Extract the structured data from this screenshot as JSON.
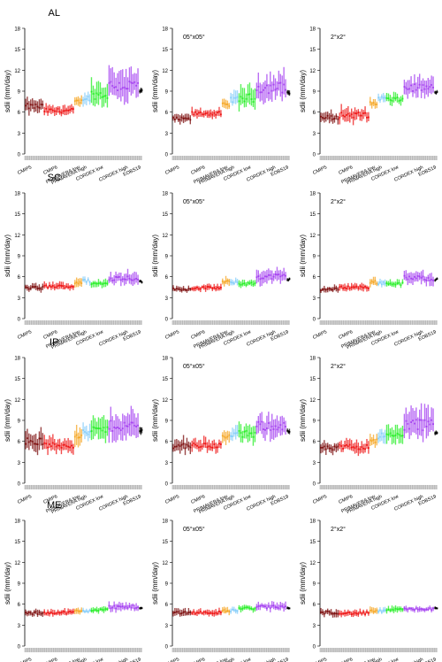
{
  "figure": {
    "colors": {
      "CMIP5": "#7a0a0a",
      "CMIP6": "#ee1111",
      "PRIMAVERA low": "#f5a623",
      "PRIMAVERA high": "#87cefa",
      "CORDEX low": "#22ee22",
      "CORDEX high": "#a33ef0",
      "EOBS19": "#000000",
      "axis": "#000000",
      "tick_strip": "#9a9a9a"
    }
  },
  "chart_data": [
    {
      "panel": "AL-native",
      "type": "scatter",
      "title": "AL",
      "subtitle": "",
      "ylabel": "sdii (mm/day)",
      "ylim": [
        0,
        18
      ],
      "yticks": [
        0,
        3,
        6,
        9,
        12,
        15,
        18
      ],
      "xtick_labels": [
        "CMIP5",
        "CMIP6",
        "PRIMAVERA low",
        "PRIMAVERA high",
        "CORDEX low",
        "CORDEX high",
        "EOBS19"
      ],
      "series": [
        {
          "name": "CMIP5",
          "median": 6.8,
          "spread": 1.6
        },
        {
          "name": "CMIP6",
          "median": 6.2,
          "spread": 1.2
        },
        {
          "name": "PRIMAVERA low",
          "median": 7.5,
          "spread": 1.1
        },
        {
          "name": "PRIMAVERA high",
          "median": 8.0,
          "spread": 1.4
        },
        {
          "name": "CORDEX low",
          "median": 8.5,
          "spread": 2.6
        },
        {
          "name": "CORDEX high",
          "median": 9.8,
          "spread": 3.6
        },
        {
          "name": "EOBS19",
          "median": 9.0,
          "spread": 0.6
        }
      ]
    },
    {
      "panel": "AL-05x05",
      "type": "scatter",
      "title": "",
      "subtitle": "05°x05°",
      "ylabel": "sdii (mm/day)",
      "ylim": [
        0,
        18
      ],
      "yticks": [
        0,
        3,
        6,
        9,
        12,
        15,
        18
      ],
      "xtick_labels": [
        "CMIP5",
        "CMIP6",
        "PRIMAVERA low",
        "PRIMAVERA high",
        "CORDEX low",
        "CORDEX high",
        "EOBS19"
      ],
      "series": [
        {
          "name": "CMIP5",
          "median": 5.0,
          "spread": 1.0
        },
        {
          "name": "CMIP6",
          "median": 5.8,
          "spread": 1.0
        },
        {
          "name": "PRIMAVERA low",
          "median": 7.0,
          "spread": 1.2
        },
        {
          "name": "PRIMAVERA high",
          "median": 7.8,
          "spread": 1.5
        },
        {
          "name": "CORDEX low",
          "median": 8.0,
          "spread": 2.4
        },
        {
          "name": "CORDEX high",
          "median": 9.5,
          "spread": 3.2
        },
        {
          "name": "EOBS19",
          "median": 8.8,
          "spread": 0.6
        }
      ]
    },
    {
      "panel": "AL-2x2",
      "type": "scatter",
      "title": "",
      "subtitle": "2°x2°",
      "ylabel": "sdii (mm/day)",
      "ylim": [
        0,
        18
      ],
      "yticks": [
        0,
        3,
        6,
        9,
        12,
        15,
        18
      ],
      "xtick_labels": [
        "CMIP5",
        "CMIP6",
        "PRIMAVERA low",
        "PRIMAVERA high",
        "CORDEX low",
        "CORDEX high",
        "EOBS19"
      ],
      "series": [
        {
          "name": "CMIP5",
          "median": 5.2,
          "spread": 1.2
        },
        {
          "name": "CMIP6",
          "median": 5.6,
          "spread": 1.6
        },
        {
          "name": "PRIMAVERA low",
          "median": 7.2,
          "spread": 1.0
        },
        {
          "name": "PRIMAVERA high",
          "median": 8.0,
          "spread": 1.0
        },
        {
          "name": "CORDEX low",
          "median": 7.8,
          "spread": 1.2
        },
        {
          "name": "CORDEX high",
          "median": 9.5,
          "spread": 2.0
        },
        {
          "name": "EOBS19",
          "median": 8.8,
          "spread": 0.4
        }
      ]
    },
    {
      "panel": "SC-native",
      "type": "scatter",
      "title": "SC",
      "subtitle": "",
      "ylabel": "sdii (mm/day)",
      "ylim": [
        0,
        18
      ],
      "yticks": [
        0,
        3,
        6,
        9,
        12,
        15,
        18
      ],
      "xtick_labels": [
        "CMIP5",
        "CMIP6",
        "PRIMAVERA low",
        "PRIMAVERA high",
        "CORDEX low",
        "CORDEX high",
        "EOBS19"
      ],
      "series": [
        {
          "name": "CMIP5",
          "median": 4.4,
          "spread": 0.8
        },
        {
          "name": "CMIP6",
          "median": 4.6,
          "spread": 0.8
        },
        {
          "name": "PRIMAVERA low",
          "median": 5.2,
          "spread": 1.2
        },
        {
          "name": "PRIMAVERA high",
          "median": 5.4,
          "spread": 0.8
        },
        {
          "name": "CORDEX low",
          "median": 5.0,
          "spread": 0.9
        },
        {
          "name": "CORDEX high",
          "median": 5.8,
          "spread": 1.4
        },
        {
          "name": "EOBS19",
          "median": 5.3,
          "spread": 0.4
        }
      ]
    },
    {
      "panel": "SC-05x05",
      "type": "scatter",
      "title": "",
      "subtitle": "05°x05°",
      "ylabel": "sdii (mm/day)",
      "ylim": [
        0,
        18
      ],
      "yticks": [
        0,
        3,
        6,
        9,
        12,
        15,
        18
      ],
      "xtick_labels": [
        "CMIP5",
        "CMIP6",
        "PRIMAVERA low",
        "PRIMAVERA high",
        "CORDEX low",
        "CORDEX high",
        "EOBS19"
      ],
      "series": [
        {
          "name": "CMIP5",
          "median": 4.2,
          "spread": 0.6
        },
        {
          "name": "CMIP6",
          "median": 4.4,
          "spread": 0.7
        },
        {
          "name": "PRIMAVERA low",
          "median": 5.2,
          "spread": 1.0
        },
        {
          "name": "PRIMAVERA high",
          "median": 5.2,
          "spread": 0.8
        },
        {
          "name": "CORDEX low",
          "median": 5.0,
          "spread": 0.8
        },
        {
          "name": "CORDEX high",
          "median": 6.0,
          "spread": 1.6
        },
        {
          "name": "EOBS19",
          "median": 5.6,
          "spread": 0.4
        }
      ]
    },
    {
      "panel": "SC-2x2",
      "type": "scatter",
      "title": "",
      "subtitle": "2°x2°",
      "ylabel": "sdii (mm/day)",
      "ylim": [
        0,
        18
      ],
      "yticks": [
        0,
        3,
        6,
        9,
        12,
        15,
        18
      ],
      "xtick_labels": [
        "CMIP5",
        "CMIP6",
        "PRIMAVERA low",
        "PRIMAVERA high",
        "CORDEX low",
        "CORDEX high",
        "EOBS19"
      ],
      "series": [
        {
          "name": "CMIP5",
          "median": 4.2,
          "spread": 0.7
        },
        {
          "name": "CMIP6",
          "median": 4.5,
          "spread": 0.8
        },
        {
          "name": "PRIMAVERA low",
          "median": 5.2,
          "spread": 1.0
        },
        {
          "name": "PRIMAVERA high",
          "median": 5.1,
          "spread": 0.8
        },
        {
          "name": "CORDEX low",
          "median": 5.0,
          "spread": 0.8
        },
        {
          "name": "CORDEX high",
          "median": 5.8,
          "spread": 1.4
        },
        {
          "name": "EOBS19",
          "median": 5.6,
          "spread": 0.4
        }
      ]
    },
    {
      "panel": "IP-native",
      "type": "scatter",
      "title": "IP",
      "subtitle": "",
      "ylabel": "sdii (mm/day)",
      "ylim": [
        0,
        18
      ],
      "yticks": [
        0,
        3,
        6,
        9,
        12,
        15,
        18
      ],
      "xtick_labels": [
        "CMIP5",
        "CMIP6",
        "PRIMAVERA low",
        "PRIMAVERA high",
        "CORDEX low",
        "CORDEX high",
        "EOBS19"
      ],
      "series": [
        {
          "name": "CMIP5",
          "median": 6.0,
          "spread": 2.4
        },
        {
          "name": "CMIP6",
          "median": 5.4,
          "spread": 1.6
        },
        {
          "name": "PRIMAVERA low",
          "median": 7.0,
          "spread": 2.2
        },
        {
          "name": "PRIMAVERA high",
          "median": 7.2,
          "spread": 1.6
        },
        {
          "name": "CORDEX low",
          "median": 7.6,
          "spread": 2.6
        },
        {
          "name": "CORDEX high",
          "median": 8.2,
          "spread": 3.0
        },
        {
          "name": "EOBS19",
          "median": 7.5,
          "spread": 0.8
        }
      ]
    },
    {
      "panel": "IP-05x05",
      "type": "scatter",
      "title": "",
      "subtitle": "05°x05°",
      "ylabel": "sdii (mm/day)",
      "ylim": [
        0,
        18
      ],
      "yticks": [
        0,
        3,
        6,
        9,
        12,
        15,
        18
      ],
      "xtick_labels": [
        "CMIP5",
        "CMIP6",
        "PRIMAVERA low",
        "PRIMAVERA high",
        "CORDEX low",
        "CORDEX high",
        "EOBS19"
      ],
      "series": [
        {
          "name": "CMIP5",
          "median": 5.4,
          "spread": 1.6
        },
        {
          "name": "CMIP6",
          "median": 5.4,
          "spread": 1.4
        },
        {
          "name": "PRIMAVERA low",
          "median": 6.6,
          "spread": 1.6
        },
        {
          "name": "PRIMAVERA high",
          "median": 7.0,
          "spread": 1.6
        },
        {
          "name": "CORDEX low",
          "median": 7.0,
          "spread": 2.0
        },
        {
          "name": "CORDEX high",
          "median": 8.2,
          "spread": 2.6
        },
        {
          "name": "EOBS19",
          "median": 7.4,
          "spread": 0.6
        }
      ]
    },
    {
      "panel": "IP-2x2",
      "type": "scatter",
      "title": "",
      "subtitle": "2°x2°",
      "ylabel": "sdii (mm/day)",
      "ylim": [
        0,
        18
      ],
      "yticks": [
        0,
        3,
        6,
        9,
        12,
        15,
        18
      ],
      "xtick_labels": [
        "CMIP5",
        "CMIP6",
        "PRIMAVERA low",
        "PRIMAVERA high",
        "CORDEX low",
        "CORDEX high",
        "EOBS19"
      ],
      "series": [
        {
          "name": "CMIP5",
          "median": 5.0,
          "spread": 1.2
        },
        {
          "name": "CMIP6",
          "median": 5.2,
          "spread": 1.4
        },
        {
          "name": "PRIMAVERA low",
          "median": 6.2,
          "spread": 1.6
        },
        {
          "name": "PRIMAVERA high",
          "median": 6.8,
          "spread": 1.6
        },
        {
          "name": "CORDEX low",
          "median": 6.8,
          "spread": 2.0
        },
        {
          "name": "CORDEX high",
          "median": 8.4,
          "spread": 3.4
        },
        {
          "name": "EOBS19",
          "median": 7.2,
          "spread": 0.6
        }
      ]
    },
    {
      "panel": "ME-native",
      "type": "scatter",
      "title": "ME",
      "subtitle": "",
      "ylabel": "sdii (mm/day)",
      "ylim": [
        0,
        18
      ],
      "yticks": [
        0,
        3,
        6,
        9,
        12,
        15,
        18
      ],
      "xtick_labels": [
        "CMIP5",
        "CMIP6",
        "PRIMAVERA low",
        "PRIMAVERA high",
        "CORDEX low",
        "CORDEX high",
        "EOBS19"
      ],
      "series": [
        {
          "name": "CMIP5",
          "median": 4.7,
          "spread": 0.8
        },
        {
          "name": "CMIP6",
          "median": 4.8,
          "spread": 0.7
        },
        {
          "name": "PRIMAVERA low",
          "median": 5.0,
          "spread": 0.8
        },
        {
          "name": "PRIMAVERA high",
          "median": 5.0,
          "spread": 0.6
        },
        {
          "name": "CORDEX low",
          "median": 5.2,
          "spread": 0.7
        },
        {
          "name": "CORDEX high",
          "median": 5.6,
          "spread": 0.9
        },
        {
          "name": "EOBS19",
          "median": 5.4,
          "spread": 0.3
        }
      ]
    },
    {
      "panel": "ME-05x05",
      "type": "scatter",
      "title": "",
      "subtitle": "05°x05°",
      "ylabel": "sdii (mm/day)",
      "ylim": [
        0,
        18
      ],
      "yticks": [
        0,
        3,
        6,
        9,
        12,
        15,
        18
      ],
      "xtick_labels": [
        "CMIP5",
        "CMIP6",
        "PRIMAVERA low",
        "PRIMAVERA high",
        "CORDEX low",
        "CORDEX high",
        "EOBS19"
      ],
      "series": [
        {
          "name": "CMIP5",
          "median": 4.8,
          "spread": 0.8
        },
        {
          "name": "CMIP6",
          "median": 4.8,
          "spread": 0.7
        },
        {
          "name": "PRIMAVERA low",
          "median": 5.0,
          "spread": 0.8
        },
        {
          "name": "PRIMAVERA high",
          "median": 5.1,
          "spread": 0.6
        },
        {
          "name": "CORDEX low",
          "median": 5.4,
          "spread": 0.7
        },
        {
          "name": "CORDEX high",
          "median": 5.6,
          "spread": 0.9
        },
        {
          "name": "EOBS19",
          "median": 5.4,
          "spread": 0.3
        }
      ]
    },
    {
      "panel": "ME-2x2",
      "type": "scatter",
      "title": "",
      "subtitle": "2°x2°",
      "ylabel": "sdii (mm/day)",
      "ylim": [
        0,
        18
      ],
      "yticks": [
        0,
        3,
        6,
        9,
        12,
        15,
        18
      ],
      "xtick_labels": [
        "CMIP5",
        "CMIP6",
        "PRIMAVERA low",
        "PRIMAVERA high",
        "CORDEX low",
        "CORDEX high",
        "EOBS19"
      ],
      "series": [
        {
          "name": "CMIP5",
          "median": 4.8,
          "spread": 0.8
        },
        {
          "name": "CMIP6",
          "median": 4.7,
          "spread": 0.7
        },
        {
          "name": "PRIMAVERA low",
          "median": 5.0,
          "spread": 0.8
        },
        {
          "name": "PRIMAVERA high",
          "median": 5.0,
          "spread": 0.6
        },
        {
          "name": "CORDEX low",
          "median": 5.2,
          "spread": 0.7
        },
        {
          "name": "CORDEX high",
          "median": 5.3,
          "spread": 0.6
        },
        {
          "name": "EOBS19",
          "median": 5.4,
          "spread": 0.3
        }
      ]
    }
  ]
}
